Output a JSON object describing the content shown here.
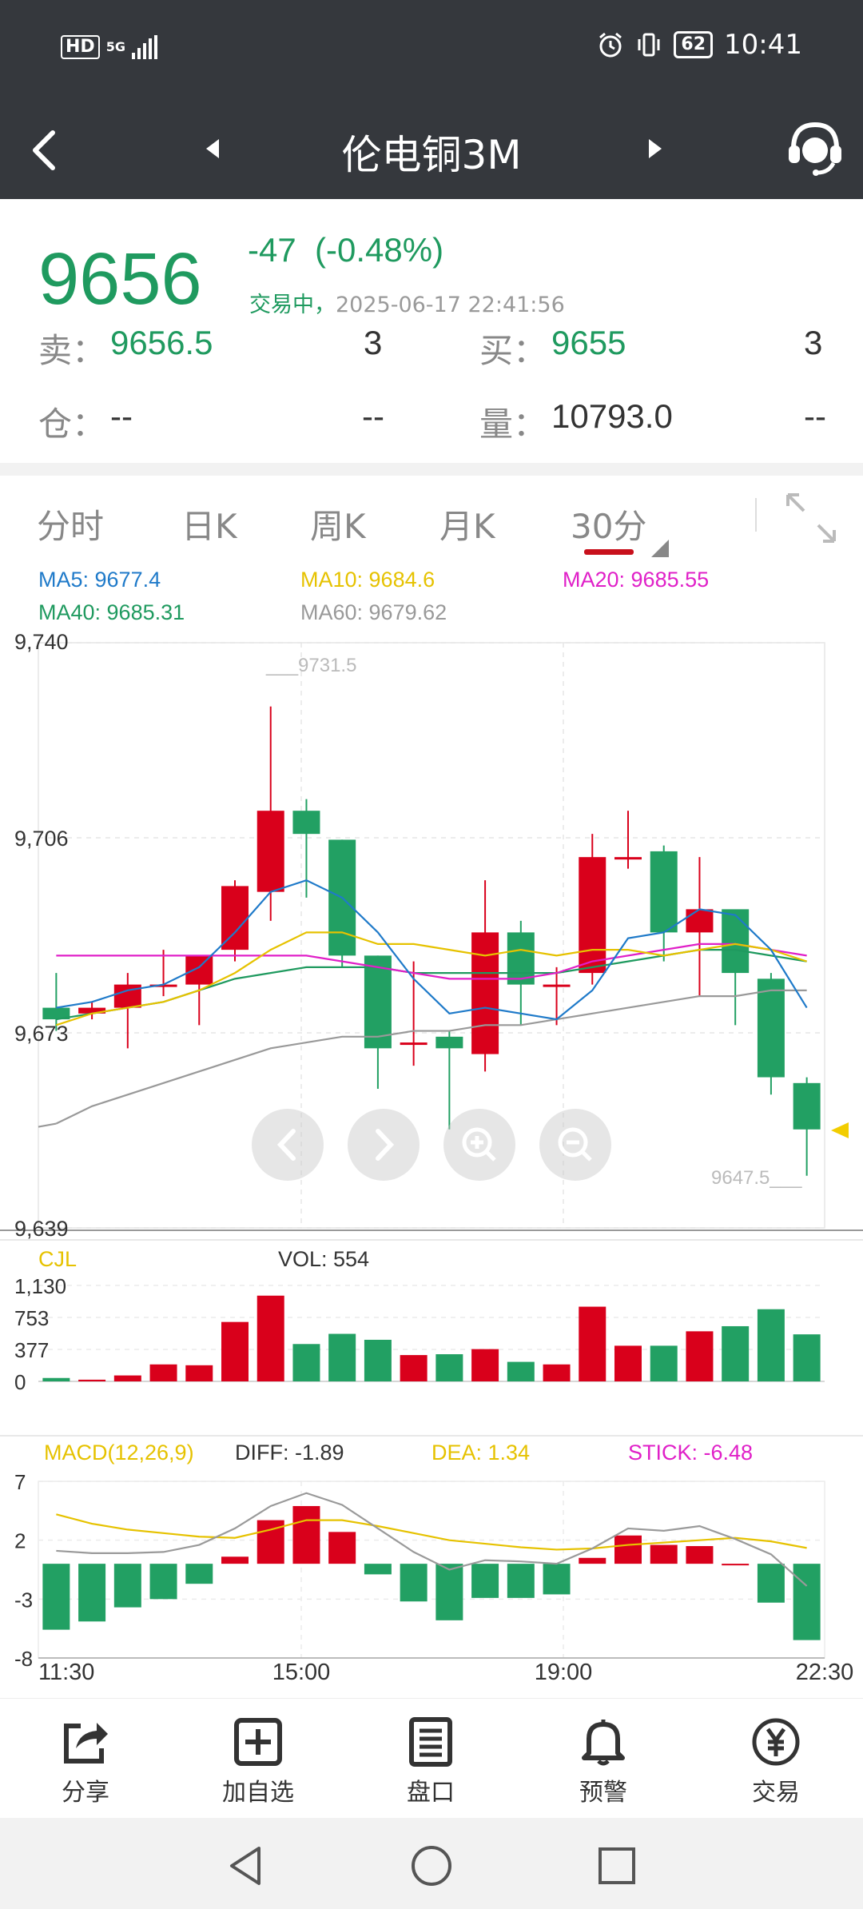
{
  "status": {
    "hd": "HD",
    "net": "5G",
    "time": "10:41",
    "battery": "62"
  },
  "title": "伦电铜3M",
  "quote": {
    "price": "9656",
    "change": "-47",
    "change_pct": "(-0.48%)",
    "trading_status": "交易中，",
    "timestamp": "2025-06-17 22:41:56",
    "sell_label": "卖：",
    "sell_price": "9656.5",
    "sell_qty": "3",
    "buy_label": "买：",
    "buy_price": "9655",
    "buy_qty": "3",
    "oi_label": "仓：",
    "oi_value": "--",
    "oi_change": "--",
    "vol_label": "量：",
    "vol_value": "10793.0",
    "vol_change": "--"
  },
  "tabs": [
    "分时",
    "日K",
    "周K",
    "月K",
    "30分"
  ],
  "ma": {
    "ma5": "MA5: 9677.4",
    "ma10": "MA10: 9684.6",
    "ma20": "MA20: 9685.55",
    "ma40": "MA40: 9685.31",
    "ma60": "MA60: 9679.62"
  },
  "vol_panel": {
    "label": "CJL",
    "vol": "VOL: 554"
  },
  "macd_panel": {
    "label": "MACD(12,26,9)",
    "diff": "DIFF: -1.89",
    "dea": "DEA: 1.34",
    "stick": "STICK: -6.48"
  },
  "nav": [
    "分享",
    "加自选",
    "盘口",
    "预警",
    "交易"
  ],
  "colors": {
    "up": "#d9001b",
    "down": "#22a063",
    "ma5": "#1f7ac9",
    "ma10": "#e6c200",
    "ma20": "#e020c8",
    "ma40": "#1f9a5f",
    "ma60": "#999999"
  },
  "chart_data": [
    {
      "type": "candlestick",
      "title": "伦电铜3M 30分",
      "ylim": [
        9639,
        9740
      ],
      "y_ticks": [
        "9,740",
        "9,706",
        "9,673",
        "9,639"
      ],
      "x_ticks": [
        "11:30",
        "15:00",
        "19:00",
        "22:30"
      ],
      "annotations": {
        "high": "9731.5",
        "low": "9647.5"
      },
      "candles": [
        {
          "o": 9677,
          "c": 9675,
          "h": 9683,
          "l": 9673
        },
        {
          "o": 9676,
          "c": 9677,
          "h": 9678,
          "l": 9675
        },
        {
          "o": 9677,
          "c": 9681,
          "h": 9683,
          "l": 9670
        },
        {
          "o": 9681,
          "c": 9681,
          "h": 9687,
          "l": 9679
        },
        {
          "o": 9681,
          "c": 9686,
          "h": 9686,
          "l": 9674
        },
        {
          "o": 9687,
          "c": 9698,
          "h": 9699,
          "l": 9685
        },
        {
          "o": 9697,
          "c": 9711,
          "h": 9729,
          "l": 9692
        },
        {
          "o": 9711,
          "c": 9707,
          "h": 9713,
          "l": 9696
        },
        {
          "o": 9706,
          "c": 9686,
          "h": 9706,
          "l": 9684
        },
        {
          "o": 9686,
          "c": 9670,
          "h": 9686,
          "l": 9663
        },
        {
          "o": 9671,
          "c": 9671,
          "h": 9685,
          "l": 9667
        },
        {
          "o": 9672,
          "c": 9670,
          "h": 9673,
          "l": 9656
        },
        {
          "o": 9669,
          "c": 9690,
          "h": 9699,
          "l": 9666
        },
        {
          "o": 9690,
          "c": 9681,
          "h": 9692,
          "l": 9674
        },
        {
          "o": 9681,
          "c": 9681,
          "h": 9684,
          "l": 9674
        },
        {
          "o": 9683,
          "c": 9703,
          "h": 9707,
          "l": 9681
        },
        {
          "o": 9703,
          "c": 9703,
          "h": 9711,
          "l": 9701
        },
        {
          "o": 9704,
          "c": 9690,
          "h": 9705,
          "l": 9685
        },
        {
          "o": 9690,
          "c": 9694,
          "h": 9703,
          "l": 9679
        },
        {
          "o": 9694,
          "c": 9683,
          "h": 9693,
          "l": 9674
        },
        {
          "o": 9682,
          "c": 9665,
          "h": 9683,
          "l": 9662
        },
        {
          "o": 9664,
          "c": 9656,
          "h": 9665,
          "l": 9648
        }
      ],
      "ma5": [
        9677,
        9678,
        9680,
        9681,
        9684,
        9690,
        9697,
        9699,
        9696,
        9690,
        9682,
        9676,
        9677,
        9676,
        9675,
        9680,
        9689,
        9690,
        9694,
        9693,
        9687,
        9677
      ],
      "ma10": [
        9674,
        9676,
        9677,
        9678,
        9680,
        9683,
        9687,
        9690,
        9690,
        9688,
        9688,
        9687,
        9686,
        9687,
        9686,
        9687,
        9687,
        9686,
        9687,
        9688,
        9687,
        9685
      ],
      "ma20": [
        9686,
        9686,
        9686,
        9686,
        9686,
        9686,
        9686,
        9686,
        9685,
        9684,
        9683,
        9682,
        9682,
        9682,
        9683,
        9685,
        9686,
        9687,
        9688,
        9688,
        9687,
        9686
      ],
      "ma40": [
        9675,
        9676,
        9677,
        9678,
        9680,
        9682,
        9683,
        9684,
        9684,
        9684,
        9683,
        9683,
        9683,
        9683,
        9683,
        9684,
        9685,
        9686,
        9687,
        9687,
        9686,
        9685
      ],
      "ma60": [
        9657,
        9660,
        9662,
        9664,
        9666,
        9668,
        9670,
        9671,
        9672,
        9672,
        9673,
        9673,
        9674,
        9674,
        9675,
        9676,
        9677,
        9678,
        9679,
        9679,
        9680,
        9680
      ]
    },
    {
      "type": "bar",
      "title": "CJL",
      "ylim": [
        0,
        1130
      ],
      "y_ticks": [
        "1,130",
        "753",
        "377",
        "0"
      ],
      "values": [
        40,
        20,
        70,
        200,
        190,
        700,
        1010,
        440,
        560,
        490,
        310,
        320,
        380,
        230,
        200,
        880,
        420,
        420,
        590,
        650,
        850,
        554
      ]
    },
    {
      "type": "bar",
      "title": "MACD(12,26,9)",
      "ylim": [
        -8,
        7
      ],
      "y_ticks": [
        "7",
        "2",
        "-3",
        "-8"
      ],
      "stick": [
        -5.6,
        -4.9,
        -3.7,
        -3.0,
        -1.7,
        0.6,
        3.7,
        4.9,
        2.7,
        -0.9,
        -3.2,
        -4.8,
        -2.9,
        -2.9,
        -2.6,
        0.5,
        2.4,
        1.6,
        1.5,
        0.0,
        -3.3,
        -6.48
      ],
      "diff": [
        1.1,
        0.9,
        0.9,
        1.0,
        1.6,
        3.0,
        4.9,
        6.0,
        5.0,
        3.0,
        1.0,
        -0.5,
        0.3,
        0.2,
        0.0,
        1.3,
        3.0,
        2.8,
        3.2,
        2.1,
        0.8,
        -1.89
      ],
      "dea": [
        4.2,
        3.4,
        2.9,
        2.6,
        2.3,
        2.2,
        2.9,
        3.7,
        3.7,
        3.2,
        2.6,
        2.0,
        1.7,
        1.4,
        1.2,
        1.3,
        1.6,
        1.8,
        2.0,
        2.2,
        1.9,
        1.34
      ]
    }
  ]
}
